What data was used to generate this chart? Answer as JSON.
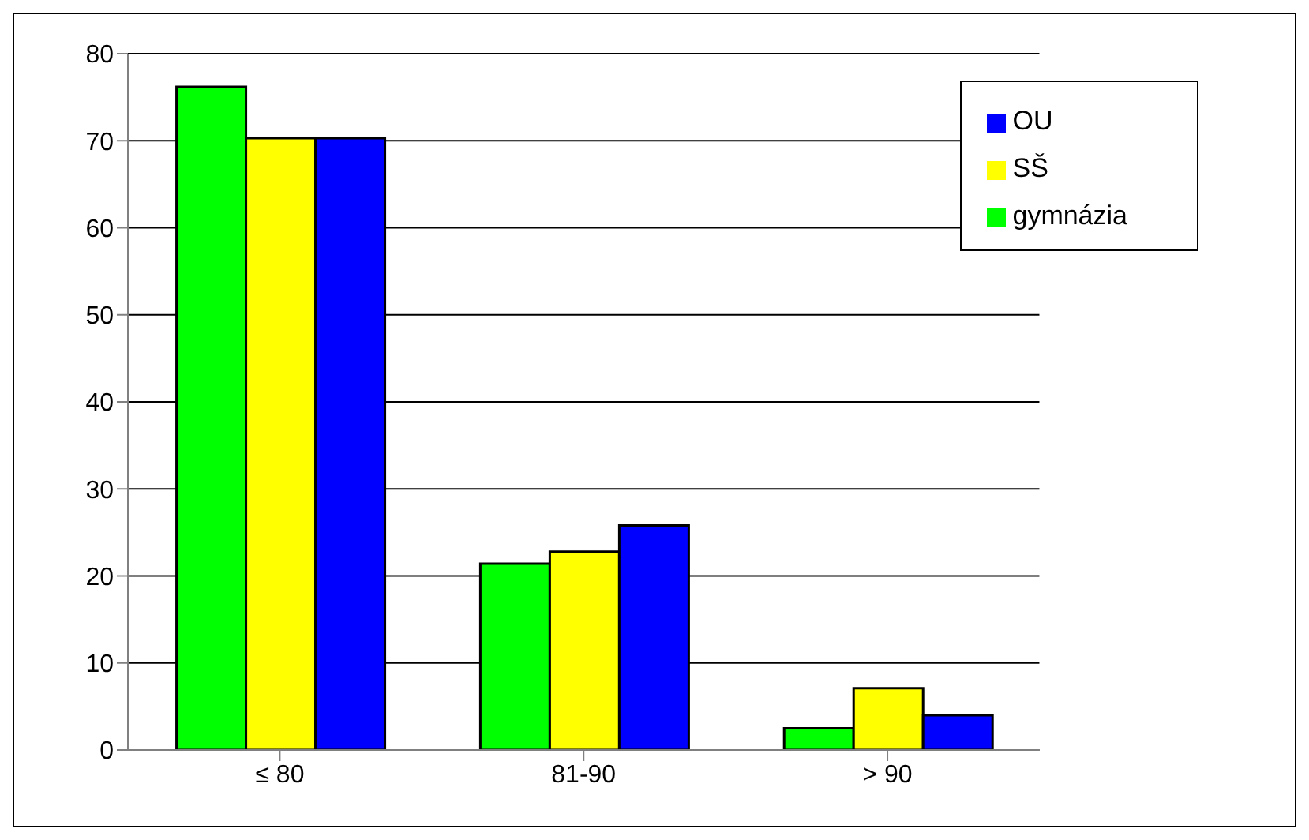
{
  "chart_data": {
    "type": "bar",
    "categories": [
      "≤ 80",
      "81-90",
      "> 90"
    ],
    "series": [
      {
        "name": "gymnázia",
        "color": "#00ff00",
        "values": [
          76.2,
          21.4,
          2.5
        ]
      },
      {
        "name": "SŠ",
        "color": "#ffff00",
        "values": [
          70.3,
          22.8,
          7.1
        ]
      },
      {
        "name": "OU",
        "color": "#0000ff",
        "values": [
          70.3,
          25.8,
          4.0
        ]
      }
    ],
    "ylim": [
      0,
      80
    ],
    "yticks": [
      0,
      10,
      20,
      30,
      40,
      50,
      60,
      70,
      80
    ],
    "grid": "y",
    "legend": "top right"
  }
}
